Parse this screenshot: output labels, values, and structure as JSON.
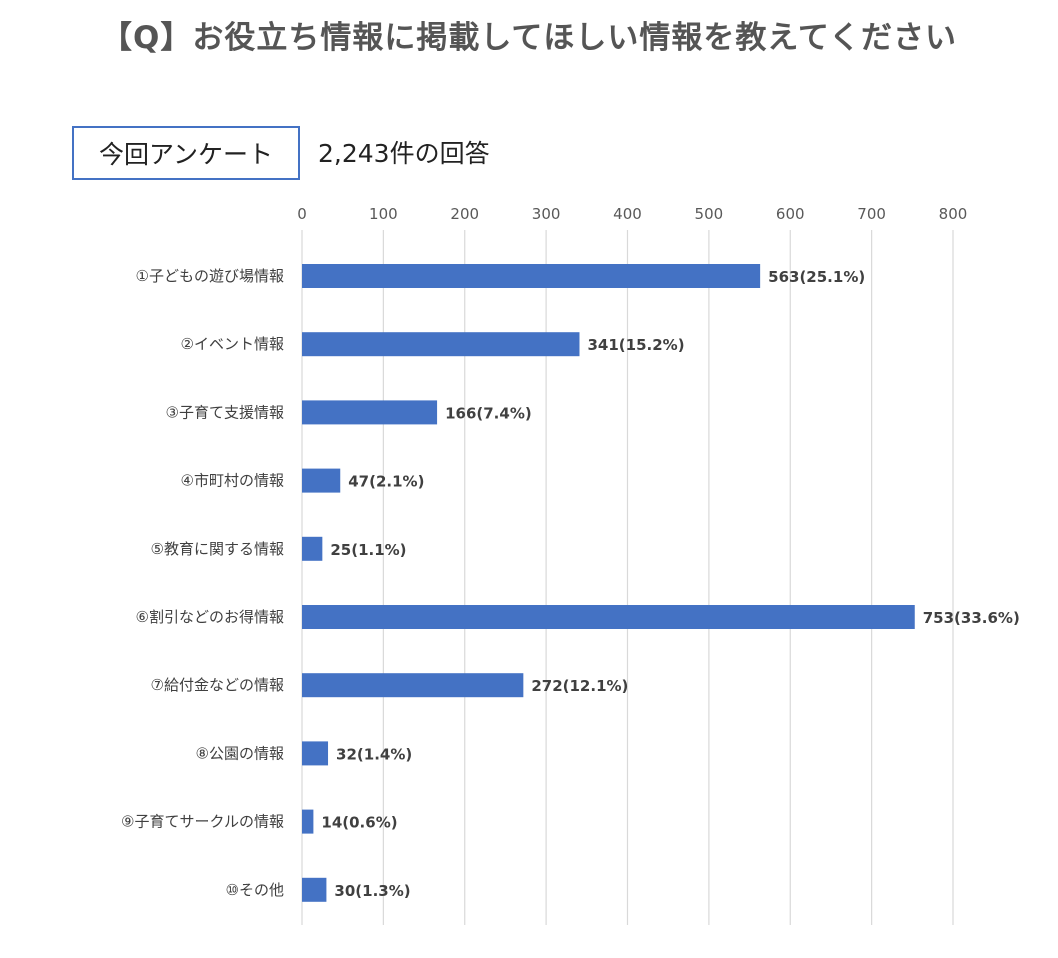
{
  "title": "【Q】お役立ち情報に掲載してほしい情報を教えてください",
  "survey_label": "今回アンケート",
  "response_count": "2,243件の回答",
  "chart_data": {
    "type": "bar",
    "orientation": "horizontal",
    "categories": [
      "①子どもの遊び場情報",
      "②イベント情報",
      "③子育て支援情報",
      "④市町村の情報",
      "⑤教育に関する情報",
      "⑥割引などのお得情報",
      "⑦給付金などの情報",
      "⑧公園の情報",
      "⑨子育てサークルの情報",
      "⑩その他"
    ],
    "values": [
      563,
      341,
      166,
      47,
      25,
      753,
      272,
      32,
      14,
      30
    ],
    "data_labels": [
      "563(25.1%)",
      "341(15.2%)",
      "166(7.4%)",
      "47(2.1%)",
      "25(1.1%)",
      "753(33.6%)",
      "272(12.1%)",
      "32(1.4%)",
      "14(0.6%)",
      "30(1.3%)"
    ],
    "xlim": [
      0,
      800
    ],
    "xticks": [
      "0",
      "100",
      "200",
      "300",
      "400",
      "500",
      "600",
      "700",
      "800"
    ],
    "xaxis_position": "top",
    "grid": true,
    "bar_color": "#4472c4"
  }
}
